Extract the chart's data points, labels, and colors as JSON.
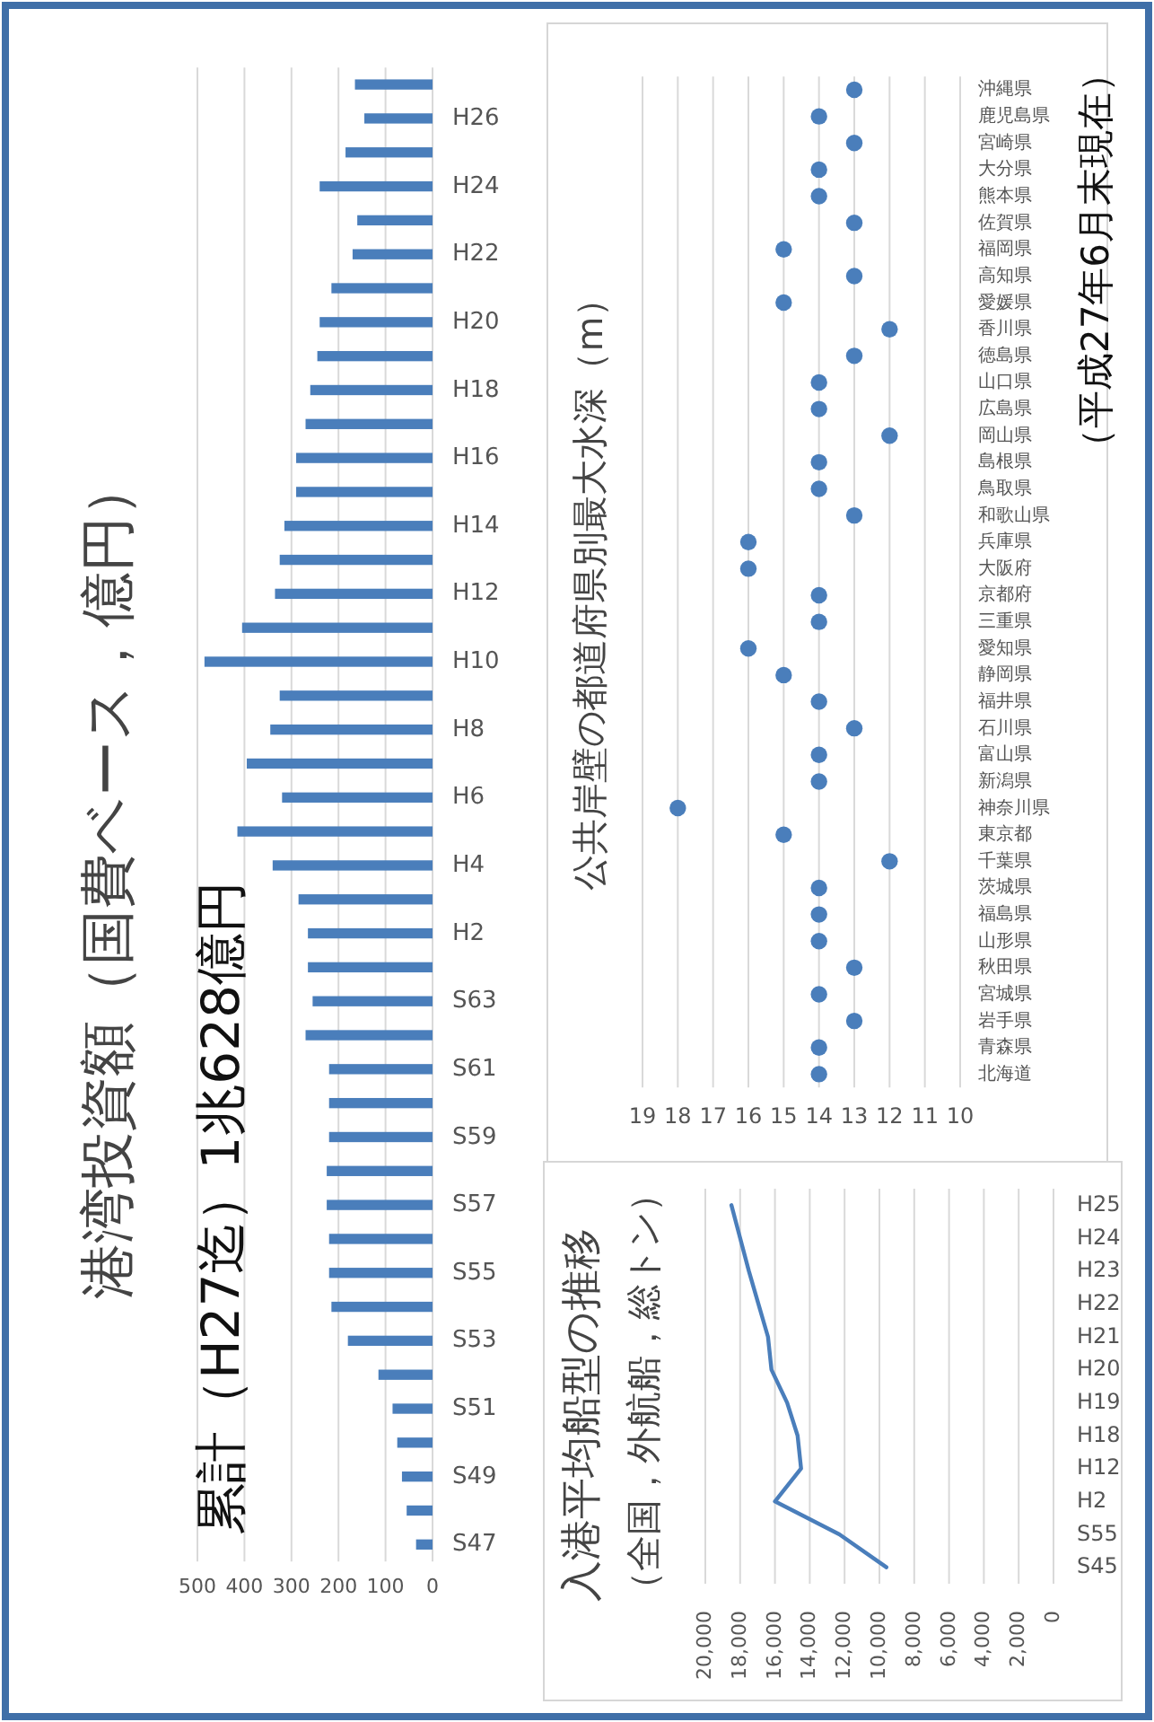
{
  "chart_data": [
    {
      "type": "bar",
      "orientation": "horizontal",
      "title": "港湾投資額（国費ベース，億円）",
      "annotations": [
        "累計（H27迄）1兆628億円"
      ],
      "categories": [
        null,
        "H26",
        null,
        "H24",
        null,
        "H22",
        null,
        "H20",
        null,
        "H18",
        null,
        "H16",
        null,
        "H14",
        null,
        "H12",
        null,
        "H10",
        null,
        "H8",
        null,
        "H6",
        null,
        "H4",
        null,
        "H2",
        null,
        "S63",
        null,
        "S61",
        null,
        "S59",
        null,
        "S57",
        null,
        "S55",
        null,
        "S53",
        null,
        "S51",
        null,
        "S49",
        null,
        "S47"
      ],
      "values": [
        165,
        145,
        185,
        240,
        160,
        170,
        215,
        240,
        245,
        260,
        270,
        290,
        290,
        315,
        325,
        335,
        405,
        485,
        325,
        345,
        395,
        320,
        415,
        340,
        285,
        265,
        265,
        255,
        270,
        220,
        220,
        220,
        225,
        225,
        220,
        220,
        215,
        180,
        115,
        85,
        75,
        65,
        55,
        35
      ],
      "color": "#4a7ebb",
      "xlim": [
        500,
        0
      ],
      "xticks": [
        500,
        400,
        300,
        200,
        100,
        0
      ],
      "grid": "x"
    },
    {
      "type": "line",
      "orientation": "horizontal",
      "title": "入港平均船型の推移",
      "subtitle": "（全国，外航船，総トン）",
      "categories": [
        "H25",
        "H24",
        "H23",
        "H22",
        "H21",
        "H20",
        "H19",
        "H18",
        "H12",
        "H2",
        "S55",
        "S45"
      ],
      "series": [
        {
          "color": "#4a7ebb",
          "values": [
            18500,
            18000,
            17500,
            16950,
            16400,
            16200,
            15300,
            14700,
            14500,
            16000,
            12300,
            9600
          ]
        }
      ],
      "xlim": [
        20000,
        0
      ],
      "xticks": [
        {
          "value": 20000,
          "label": "20,000"
        },
        {
          "value": 18000,
          "label": "18,000"
        },
        {
          "value": 16000,
          "label": "16,000"
        },
        {
          "value": 14000,
          "label": "14,000"
        },
        {
          "value": 12000,
          "label": "12,000"
        },
        {
          "value": 10000,
          "label": "10,000"
        },
        {
          "value": 8000,
          "label": "8,000"
        },
        {
          "value": 6000,
          "label": "6,000"
        },
        {
          "value": 4000,
          "label": "4,000"
        },
        {
          "value": 2000,
          "label": "2,000"
        },
        0
      ],
      "grid": "x"
    },
    {
      "type": "scatter",
      "orientation": "horizontal",
      "title": "公共岸壁の都道府県別最大水深（m）",
      "annotations": [
        "（平成27年6月末現在）"
      ],
      "categories": [
        "沖縄県",
        "鹿児島県",
        "宮崎県",
        "大分県",
        "熊本県",
        "佐賀県",
        "福岡県",
        "高知県",
        "愛媛県",
        "香川県",
        "徳島県",
        "山口県",
        "広島県",
        "岡山県",
        "島根県",
        "鳥取県",
        "和歌山県",
        "兵庫県",
        "大阪府",
        "京都府",
        "三重県",
        "愛知県",
        "静岡県",
        "福井県",
        "石川県",
        "富山県",
        "新潟県",
        "神奈川県",
        "東京都",
        "千葉県",
        "茨城県",
        "福島県",
        "山形県",
        "秋田県",
        "宮城県",
        "岩手県",
        "青森県",
        "北海道"
      ],
      "values": [
        13,
        14,
        13,
        14,
        14,
        13,
        15,
        13,
        15,
        12,
        13,
        14,
        14,
        12,
        14,
        14,
        13,
        16,
        16,
        14,
        14,
        16,
        15,
        14,
        13,
        14,
        14,
        18,
        15,
        12,
        14,
        14,
        14,
        13,
        14,
        13,
        14,
        14
      ],
      "color": "#4a7ebb",
      "xlim": [
        19,
        10
      ],
      "xticks": [
        19,
        18,
        17,
        16,
        15,
        14,
        13,
        12,
        11,
        10
      ],
      "grid": "x"
    }
  ]
}
